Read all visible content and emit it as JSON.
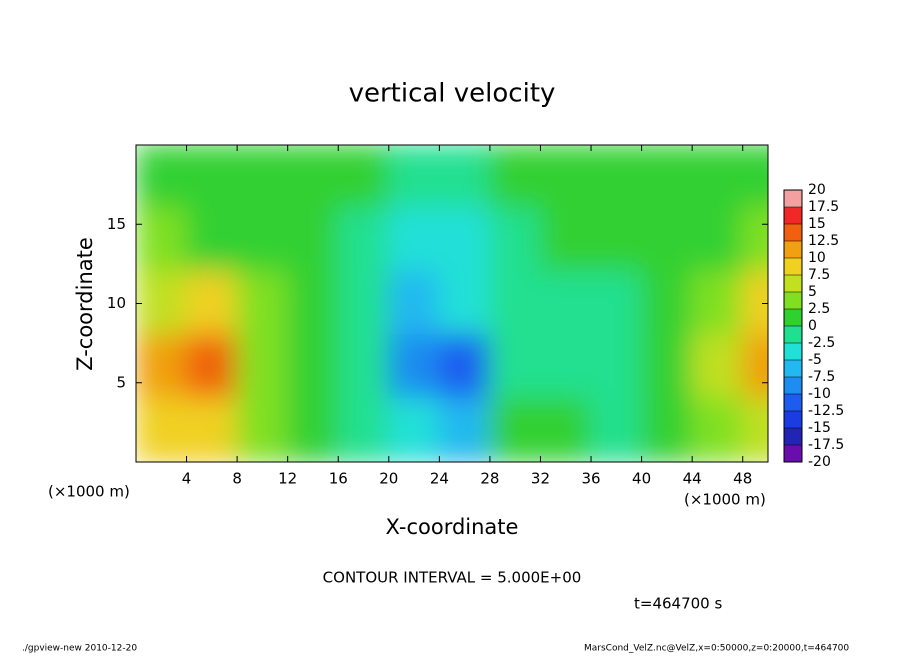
{
  "chart_data": {
    "type": "heatmap",
    "title": "vertical velocity",
    "xlabel": "X-coordinate",
    "ylabel": "Z-coordinate",
    "x_unit_label": "(×1000 m)",
    "xlim": [
      0,
      50
    ],
    "ylim": [
      0,
      20
    ],
    "xticks": [
      4,
      8,
      12,
      16,
      20,
      24,
      28,
      32,
      36,
      40,
      44,
      48
    ],
    "yticks": [
      5,
      10,
      15
    ],
    "x": [
      2,
      6,
      10,
      14,
      18,
      22,
      26,
      30,
      34,
      38,
      42,
      46,
      50
    ],
    "y": [
      18,
      14,
      10,
      6,
      2
    ],
    "z": [
      [
        1,
        1,
        1,
        0,
        0,
        -1,
        -1,
        0,
        0,
        0,
        0,
        1,
        1
      ],
      [
        3,
        2,
        1,
        0,
        -1,
        -4,
        -3,
        -1,
        0,
        0,
        0,
        2,
        4
      ],
      [
        7,
        8,
        3,
        0,
        -2,
        -7,
        -5,
        -1,
        -1,
        -1,
        1,
        4,
        9
      ],
      [
        11,
        14,
        4,
        0,
        -1,
        -8,
        -11,
        -1,
        -2,
        -2,
        1,
        5,
        11
      ],
      [
        9,
        8,
        3,
        0,
        -1,
        -4,
        -6,
        1,
        0,
        -1,
        1,
        3,
        7
      ]
    ],
    "colorbar": {
      "levels": [
        -20,
        -17.5,
        -15,
        -12.5,
        -10,
        -7.5,
        -5,
        -2.5,
        0,
        2.5,
        5,
        7.5,
        10,
        12.5,
        15,
        17.5,
        20
      ],
      "colors": [
        "#6a0dad",
        "#2424b4",
        "#1a3ce0",
        "#1e5cf0",
        "#1e8cf0",
        "#22b8f0",
        "#20e0d8",
        "#20e090",
        "#30d030",
        "#80e020",
        "#c0e020",
        "#f0d020",
        "#f0a010",
        "#f06010",
        "#f02828",
        "#f4a0a0"
      ]
    },
    "annotations": [
      "CONTOUR INTERVAL = 5.000E+00",
      "t=464700 s"
    ],
    "footer_left": "./gpview-new  2010-12-20",
    "footer_right": "MarsCond_VelZ.nc@VelZ,x=0:50000,z=0:20000,t=464700"
  }
}
